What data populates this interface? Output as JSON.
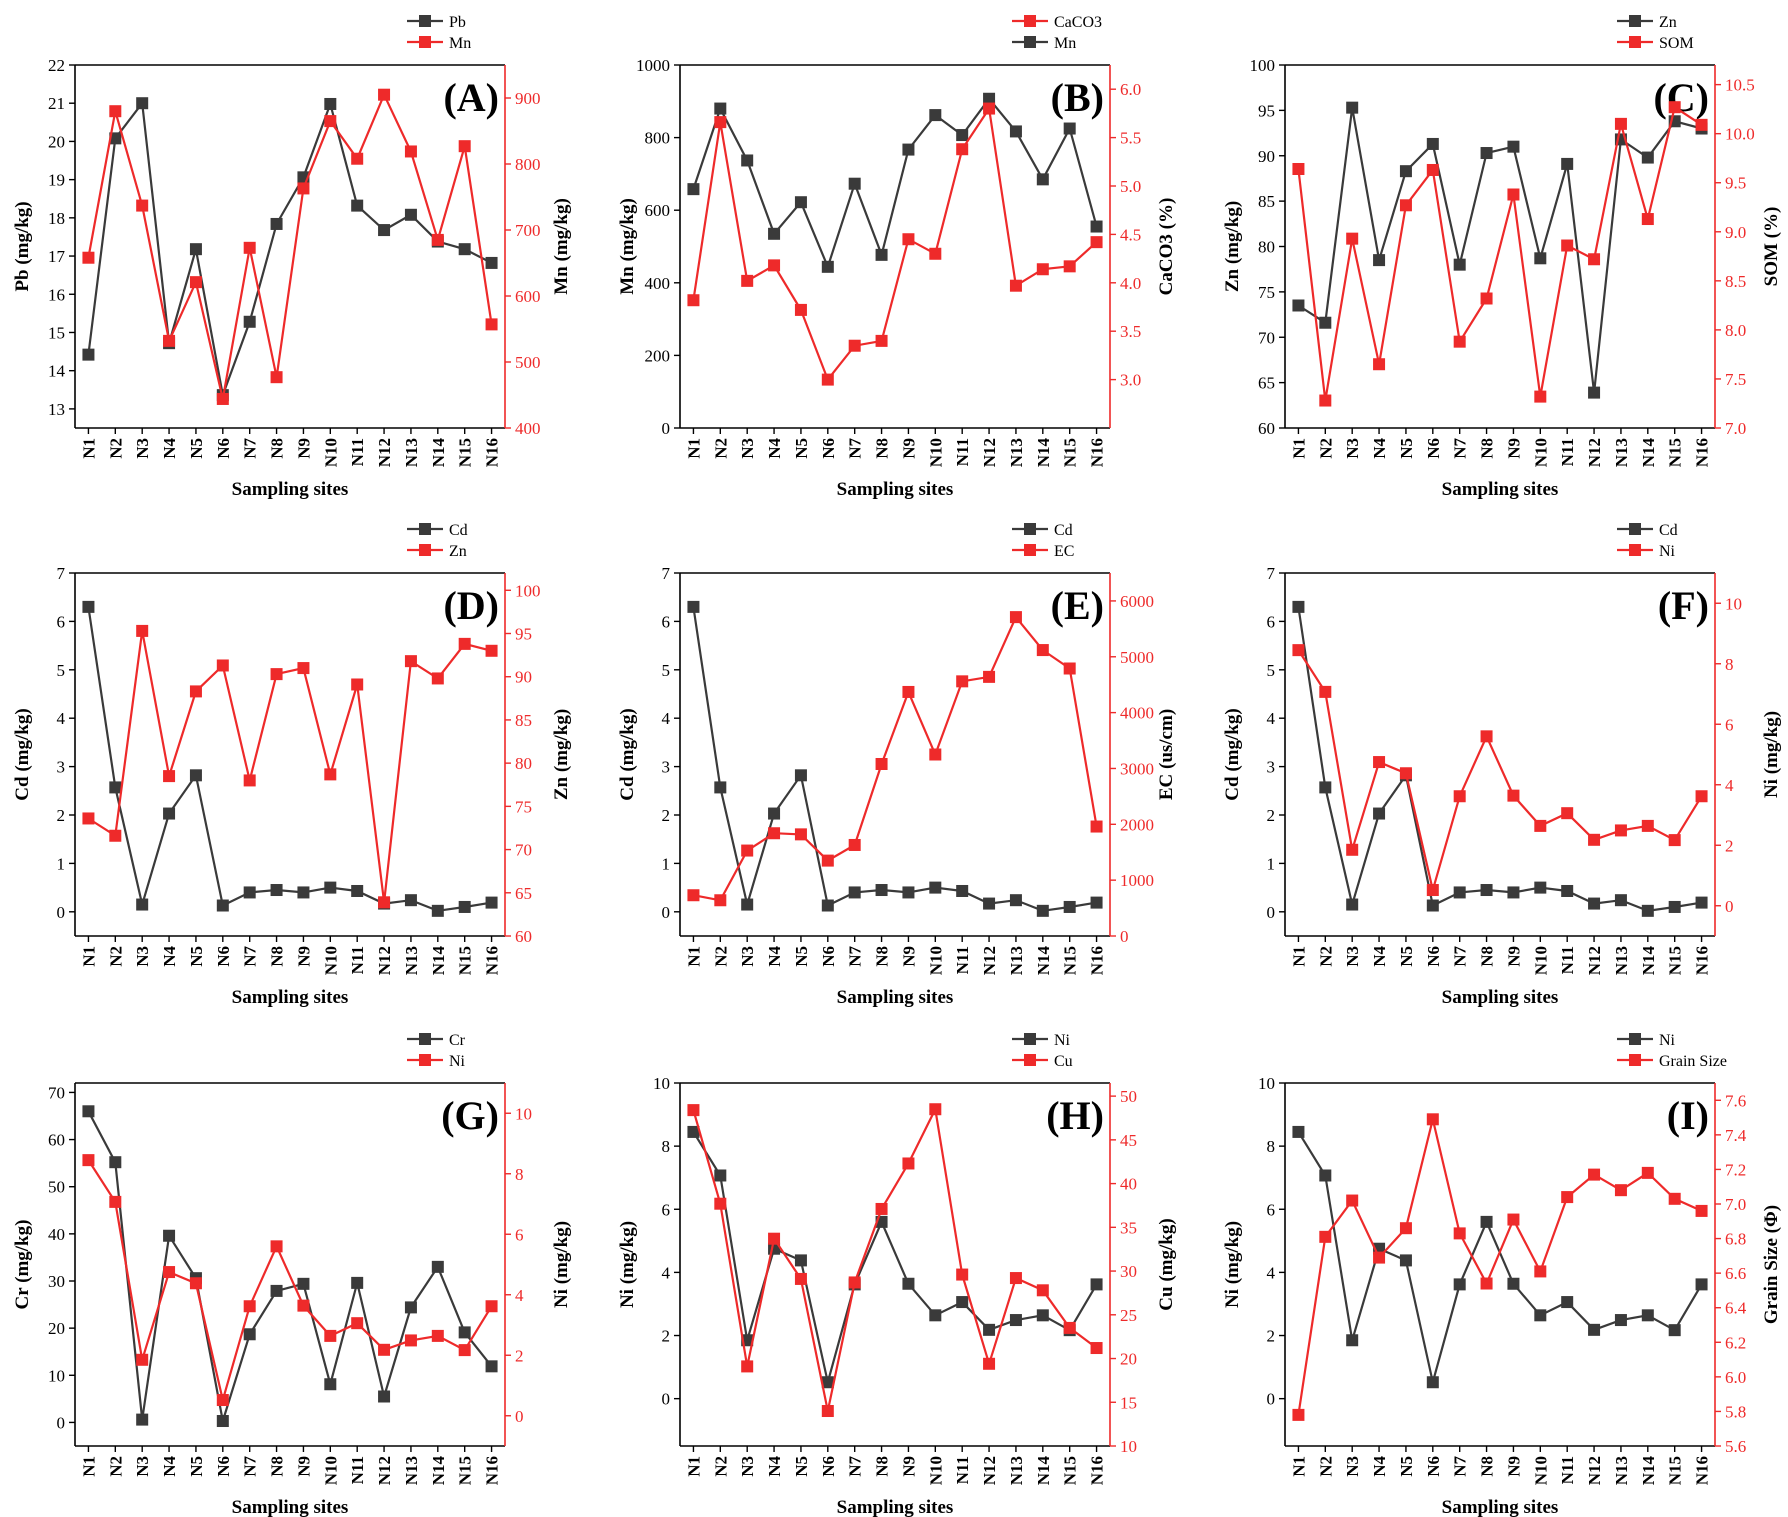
{
  "figure": {
    "xlabel": "Sampling sites"
  },
  "colors": {
    "black_series": "#3a3a3a",
    "red_series": "#ee2a2a",
    "axis": "#000000"
  },
  "chart_data": [
    {
      "id": "A",
      "panel_label": "(A)",
      "type": "line",
      "categories": [
        "N1",
        "N2",
        "N3",
        "N4",
        "N5",
        "N6",
        "N7",
        "N8",
        "N9",
        "N10",
        "N11",
        "N12",
        "N13",
        "N14",
        "N15",
        "N16"
      ],
      "xlabel": "Sampling sites",
      "left_axis": {
        "label": "Pb (mg/kg)",
        "lim": [
          12.5,
          22
        ],
        "ticks": [
          13,
          14,
          15,
          16,
          17,
          18,
          19,
          20,
          21,
          22
        ]
      },
      "right_axis": {
        "label": "Mn (mg/kg)",
        "lim": [
          400,
          950
        ],
        "ticks": [
          400,
          500,
          600,
          700,
          800,
          900
        ]
      },
      "series": [
        {
          "name": "Pb",
          "axis": "left",
          "color": "black",
          "values": [
            14.42,
            20.08,
            21.0,
            14.72,
            17.18,
            13.36,
            15.28,
            17.84,
            19.06,
            20.98,
            18.32,
            17.68,
            18.08,
            17.38,
            17.18,
            16.82
          ]
        },
        {
          "name": "Mn",
          "axis": "right",
          "color": "red",
          "values": [
            658,
            880,
            737,
            532,
            621,
            444,
            673,
            477,
            763,
            865,
            808,
            905,
            819,
            685,
            827,
            557
          ]
        }
      ],
      "legend": {
        "position": "top-right",
        "order": [
          "Pb",
          "Mn"
        ]
      }
    },
    {
      "id": "B",
      "panel_label": "(B)",
      "type": "line",
      "categories": [
        "N1",
        "N2",
        "N3",
        "N4",
        "N5",
        "N6",
        "N7",
        "N8",
        "N9",
        "N10",
        "N11",
        "N12",
        "N13",
        "N14",
        "N15",
        "N16"
      ],
      "xlabel": "Sampling sites",
      "left_axis": {
        "label": "Mn (mg/kg)",
        "lim": [
          0,
          1000
        ],
        "ticks": [
          0,
          200,
          400,
          600,
          800,
          1000
        ]
      },
      "right_axis": {
        "label": "CaCO3 (%)",
        "lim": [
          2.5,
          6.25
        ],
        "ticks": [
          3.0,
          3.5,
          4.0,
          4.5,
          5.0,
          5.5,
          6.0
        ],
        "decimals": 1
      },
      "series": [
        {
          "name": "Mn",
          "axis": "left",
          "color": "black",
          "values": [
            658,
            880,
            737,
            535,
            622,
            444,
            673,
            477,
            767,
            862,
            807,
            907,
            817,
            685,
            825,
            555
          ]
        },
        {
          "name": "CaCO3",
          "axis": "right",
          "color": "red",
          "values": [
            3.82,
            5.66,
            4.02,
            4.18,
            3.72,
            3.0,
            3.35,
            3.4,
            4.45,
            4.3,
            5.38,
            5.8,
            3.97,
            4.14,
            4.17,
            4.42
          ]
        }
      ],
      "legend": {
        "position": "top-right",
        "order": [
          "CaCO3",
          "Mn"
        ]
      }
    },
    {
      "id": "C",
      "panel_label": "(C)",
      "type": "line",
      "categories": [
        "N1",
        "N2",
        "N3",
        "N4",
        "N5",
        "N6",
        "N7",
        "N8",
        "N9",
        "N10",
        "N11",
        "N12",
        "N13",
        "N14",
        "N15",
        "N16"
      ],
      "xlabel": "Sampling sites",
      "left_axis": {
        "label": "Zn (mg/kg)",
        "lim": [
          60,
          100
        ],
        "ticks": [
          60,
          65,
          70,
          75,
          80,
          85,
          90,
          95,
          100
        ]
      },
      "right_axis": {
        "label": "SOM (%)",
        "lim": [
          7.0,
          10.7
        ],
        "ticks": [
          7.0,
          7.5,
          8.0,
          8.5,
          9.0,
          9.5,
          10.0,
          10.5
        ],
        "decimals": 1
      },
      "series": [
        {
          "name": "Zn",
          "axis": "left",
          "color": "black",
          "values": [
            73.5,
            71.6,
            95.3,
            78.5,
            88.3,
            91.3,
            78.0,
            90.3,
            91.0,
            78.7,
            89.1,
            63.9,
            91.8,
            89.8,
            93.8,
            93.0
          ]
        },
        {
          "name": "SOM",
          "axis": "right",
          "color": "red",
          "values": [
            9.64,
            7.28,
            8.93,
            7.65,
            9.27,
            9.63,
            7.88,
            8.32,
            9.38,
            7.32,
            8.86,
            8.72,
            10.1,
            9.13,
            10.27,
            10.09
          ]
        }
      ],
      "legend": {
        "position": "top-right",
        "order": [
          "Zn",
          "SOM"
        ]
      }
    },
    {
      "id": "D",
      "panel_label": "(D)",
      "type": "line",
      "categories": [
        "N1",
        "N2",
        "N3",
        "N4",
        "N5",
        "N6",
        "N7",
        "N8",
        "N9",
        "N10",
        "N11",
        "N12",
        "N13",
        "N14",
        "N15",
        "N16"
      ],
      "xlabel": "Sampling sites",
      "left_axis": {
        "label": "Cd (mg/kg)",
        "lim": [
          -0.5,
          7
        ],
        "ticks": [
          0,
          1,
          2,
          3,
          4,
          5,
          6,
          7
        ]
      },
      "right_axis": {
        "label": "Zn (mg/kg)",
        "lim": [
          60,
          102
        ],
        "ticks": [
          60,
          65,
          70,
          75,
          80,
          85,
          90,
          95,
          100
        ]
      },
      "series": [
        {
          "name": "Cd",
          "axis": "left",
          "color": "black",
          "values": [
            6.3,
            2.57,
            0.15,
            2.03,
            2.82,
            0.13,
            0.4,
            0.45,
            0.4,
            0.5,
            0.43,
            0.17,
            0.24,
            0.02,
            0.1,
            0.19
          ]
        },
        {
          "name": "Zn",
          "axis": "right",
          "color": "red",
          "values": [
            73.6,
            71.6,
            95.3,
            78.5,
            88.3,
            91.3,
            78.0,
            90.3,
            91.0,
            78.7,
            89.1,
            63.9,
            91.8,
            89.8,
            93.8,
            93.0
          ]
        }
      ],
      "legend": {
        "position": "top-right",
        "order": [
          "Cd",
          "Zn"
        ]
      }
    },
    {
      "id": "E",
      "panel_label": "(E)",
      "type": "line",
      "categories": [
        "N1",
        "N2",
        "N3",
        "N4",
        "N5",
        "N6",
        "N7",
        "N8",
        "N9",
        "N10",
        "N11",
        "N12",
        "N13",
        "N14",
        "N15",
        "N16"
      ],
      "xlabel": "Sampling sites",
      "left_axis": {
        "label": "Cd (mg/kg)",
        "lim": [
          -0.5,
          7
        ],
        "ticks": [
          0,
          1,
          2,
          3,
          4,
          5,
          6,
          7
        ]
      },
      "right_axis": {
        "label": "EC (us/cm)",
        "lim": [
          0,
          6500
        ],
        "ticks": [
          0,
          1000,
          2000,
          3000,
          4000,
          5000,
          6000
        ]
      },
      "series": [
        {
          "name": "Cd",
          "axis": "left",
          "color": "black",
          "values": [
            6.3,
            2.57,
            0.15,
            2.03,
            2.82,
            0.13,
            0.4,
            0.45,
            0.4,
            0.5,
            0.43,
            0.17,
            0.24,
            0.02,
            0.1,
            0.19
          ]
        },
        {
          "name": "EC",
          "axis": "right",
          "color": "red",
          "values": [
            730,
            640,
            1530,
            1840,
            1820,
            1350,
            1630,
            3080,
            4370,
            3250,
            4560,
            4640,
            5710,
            5120,
            4790,
            1960
          ]
        }
      ],
      "legend": {
        "position": "top-right",
        "order": [
          "Cd",
          "EC"
        ]
      }
    },
    {
      "id": "F",
      "panel_label": "(F)",
      "type": "line",
      "categories": [
        "N1",
        "N2",
        "N3",
        "N4",
        "N5",
        "N6",
        "N7",
        "N8",
        "N9",
        "N10",
        "N11",
        "N12",
        "N13",
        "N14",
        "N15",
        "N16"
      ],
      "xlabel": "Sampling sites",
      "left_axis": {
        "label": "Cd (mg/kg)",
        "lim": [
          -0.5,
          7
        ],
        "ticks": [
          0,
          1,
          2,
          3,
          4,
          5,
          6,
          7
        ]
      },
      "right_axis": {
        "label": "Ni (mg/kg)",
        "lim": [
          -1,
          11
        ],
        "ticks": [
          0,
          2,
          4,
          6,
          8,
          10
        ]
      },
      "series": [
        {
          "name": "Cd",
          "axis": "left",
          "color": "black",
          "values": [
            6.3,
            2.57,
            0.15,
            2.03,
            2.82,
            0.13,
            0.4,
            0.45,
            0.4,
            0.5,
            0.43,
            0.17,
            0.24,
            0.02,
            0.1,
            0.19
          ]
        },
        {
          "name": "Ni",
          "axis": "right",
          "color": "red",
          "values": [
            8.45,
            7.07,
            1.85,
            4.75,
            4.38,
            0.52,
            3.62,
            5.6,
            3.64,
            2.64,
            3.06,
            2.18,
            2.49,
            2.64,
            2.17,
            3.62
          ]
        }
      ],
      "legend": {
        "position": "top-right",
        "order": [
          "Cd",
          "Ni"
        ]
      }
    },
    {
      "id": "G",
      "panel_label": "(G)",
      "type": "line",
      "categories": [
        "N1",
        "N2",
        "N3",
        "N4",
        "N5",
        "N6",
        "N7",
        "N8",
        "N9",
        "N10",
        "N11",
        "N12",
        "N13",
        "N14",
        "N15",
        "N16"
      ],
      "xlabel": "Sampling sites",
      "left_axis": {
        "label": "Cr (mg/kg)",
        "lim": [
          -5,
          72
        ],
        "ticks": [
          0,
          10,
          20,
          30,
          40,
          50,
          60,
          70
        ]
      },
      "right_axis": {
        "label": "Ni (mg/kg)",
        "lim": [
          -1,
          11
        ],
        "ticks": [
          0,
          2,
          4,
          6,
          8,
          10
        ]
      },
      "series": [
        {
          "name": "Cr",
          "axis": "left",
          "color": "black",
          "values": [
            66.0,
            55.2,
            0.6,
            39.6,
            30.6,
            0.3,
            18.7,
            27.9,
            29.4,
            8.1,
            29.6,
            5.5,
            24.4,
            33.0,
            19.1,
            11.9
          ]
        },
        {
          "name": "Ni",
          "axis": "right",
          "color": "red",
          "values": [
            8.45,
            7.07,
            1.85,
            4.75,
            4.38,
            0.52,
            3.62,
            5.6,
            3.64,
            2.64,
            3.06,
            2.18,
            2.49,
            2.64,
            2.17,
            3.62
          ]
        }
      ],
      "legend": {
        "position": "top-right",
        "order": [
          "Cr",
          "Ni"
        ]
      }
    },
    {
      "id": "H",
      "panel_label": "(H)",
      "type": "line",
      "categories": [
        "N1",
        "N2",
        "N3",
        "N4",
        "N5",
        "N6",
        "N7",
        "N8",
        "N9",
        "N10",
        "N11",
        "N12",
        "N13",
        "N14",
        "N15",
        "N16"
      ],
      "xlabel": "Sampling sites",
      "left_axis": {
        "label": "Ni (mg/kg)",
        "lim": [
          -1.5,
          10
        ],
        "ticks": [
          0,
          2,
          4,
          6,
          8,
          10
        ]
      },
      "right_axis": {
        "label": "Cu (mg/kg)",
        "lim": [
          10,
          51.5
        ],
        "ticks": [
          10,
          15,
          20,
          25,
          30,
          35,
          40,
          45,
          50
        ]
      },
      "series": [
        {
          "name": "Ni",
          "axis": "left",
          "color": "black",
          "values": [
            8.45,
            7.07,
            1.85,
            4.75,
            4.38,
            0.52,
            3.62,
            5.6,
            3.64,
            2.64,
            3.06,
            2.18,
            2.49,
            2.64,
            2.17,
            3.62
          ]
        },
        {
          "name": "Cu",
          "axis": "right",
          "color": "red",
          "values": [
            48.4,
            37.7,
            19.1,
            33.7,
            29.1,
            14.0,
            28.7,
            37.1,
            42.3,
            48.5,
            29.6,
            19.4,
            29.2,
            27.8,
            23.5,
            21.2
          ]
        }
      ],
      "legend": {
        "position": "top-right",
        "order": [
          "Ni",
          "Cu"
        ]
      }
    },
    {
      "id": "I",
      "panel_label": "(I)",
      "type": "line",
      "categories": [
        "N1",
        "N2",
        "N3",
        "N4",
        "N5",
        "N6",
        "N7",
        "N8",
        "N9",
        "N10",
        "N11",
        "N12",
        "N13",
        "N14",
        "N15",
        "N16"
      ],
      "xlabel": "Sampling sites",
      "left_axis": {
        "label": "Ni (mg/kg)",
        "lim": [
          -1.5,
          10
        ],
        "ticks": [
          0,
          2,
          4,
          6,
          8,
          10
        ]
      },
      "right_axis": {
        "label": "Grain Size (Φ)",
        "lim": [
          5.6,
          7.7
        ],
        "ticks": [
          5.6,
          5.8,
          6.0,
          6.2,
          6.4,
          6.6,
          6.8,
          7.0,
          7.2,
          7.4,
          7.6
        ],
        "decimals": 1
      },
      "series": [
        {
          "name": "Ni",
          "axis": "left",
          "color": "black",
          "values": [
            8.45,
            7.07,
            1.85,
            4.75,
            4.38,
            0.52,
            3.62,
            5.6,
            3.64,
            2.64,
            3.06,
            2.18,
            2.49,
            2.64,
            2.17,
            3.62
          ]
        },
        {
          "name": "Grain Size",
          "axis": "right",
          "color": "red",
          "values": [
            5.78,
            6.81,
            7.02,
            6.69,
            6.86,
            7.49,
            6.83,
            6.54,
            6.91,
            6.61,
            7.04,
            7.17,
            7.08,
            7.18,
            7.03,
            6.96
          ]
        }
      ],
      "legend": {
        "position": "top-right",
        "order": [
          "Ni",
          "Grain Size"
        ]
      }
    }
  ]
}
